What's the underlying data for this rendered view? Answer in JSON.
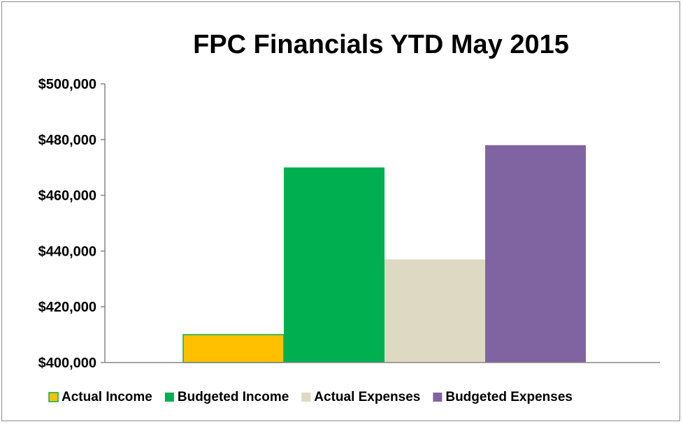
{
  "chart_data": {
    "type": "bar",
    "title": "FPC Financials YTD May 2015",
    "xlabel": "",
    "ylabel": "",
    "ylim": [
      400000,
      500000
    ],
    "yticks": [
      400000,
      420000,
      440000,
      460000,
      480000,
      500000
    ],
    "ytick_labels": [
      "$400,000",
      "$420,000",
      "$440,000",
      "$460,000",
      "$480,000",
      "$500,000"
    ],
    "grid": false,
    "legend_position": "bottom",
    "categories": [
      ""
    ],
    "series": [
      {
        "name": "Actual Income",
        "values": [
          410000
        ],
        "color": "#ffc000"
      },
      {
        "name": "Budgeted Income",
        "values": [
          470000
        ],
        "color": "#00b050"
      },
      {
        "name": "Actual Expenses",
        "values": [
          437000
        ],
        "color": "#ddd9c3"
      },
      {
        "name": "Budgeted Expenses",
        "values": [
          478000
        ],
        "color": "#8064a2"
      }
    ]
  }
}
